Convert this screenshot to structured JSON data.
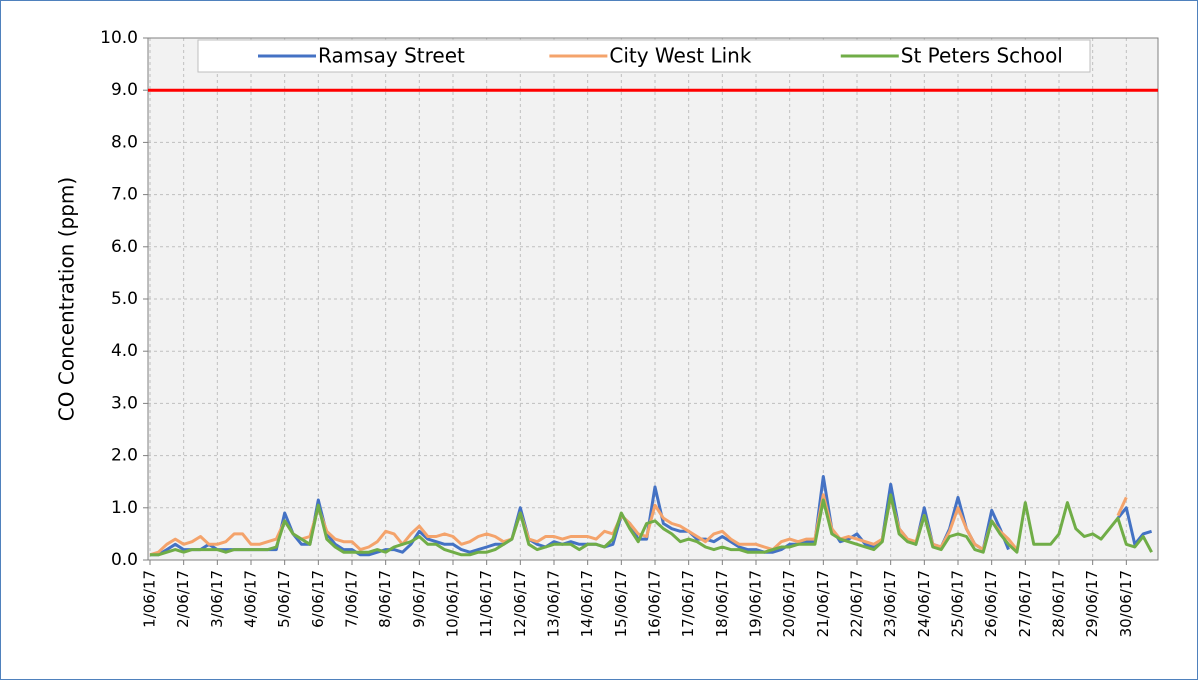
{
  "chart_data": {
    "type": "line",
    "y_label": "CO Concentration (ppm)",
    "categories": [
      "1/06/17",
      null,
      null,
      null,
      "2/06/17",
      null,
      null,
      null,
      "3/06/17",
      null,
      null,
      null,
      "4/06/17",
      null,
      null,
      null,
      "5/06/17",
      null,
      null,
      null,
      "6/06/17",
      null,
      null,
      null,
      "7/06/17",
      null,
      null,
      null,
      "8/06/17",
      null,
      null,
      null,
      "9/06/17",
      null,
      null,
      null,
      "10/06/17",
      null,
      null,
      null,
      "11/06/17",
      null,
      null,
      null,
      "12/06/17",
      null,
      null,
      null,
      "13/06/17",
      null,
      null,
      null,
      "14/06/17",
      null,
      null,
      null,
      "15/06/17",
      null,
      null,
      null,
      "16/06/17",
      null,
      null,
      null,
      "17/06/17",
      null,
      null,
      null,
      "18/06/17",
      null,
      null,
      null,
      "19/06/17",
      null,
      null,
      null,
      "20/06/17",
      null,
      null,
      null,
      "21/06/17",
      null,
      null,
      null,
      "22/06/17",
      null,
      null,
      null,
      "23/06/17",
      null,
      null,
      null,
      "24/06/17",
      null,
      null,
      null,
      "25/06/17",
      null,
      null,
      null,
      "26/06/17",
      null,
      null,
      null,
      "27/06/17",
      null,
      null,
      null,
      "28/06/17",
      null,
      null,
      null,
      "29/06/17",
      null,
      null,
      null,
      "30/06/17",
      null,
      null,
      null
    ],
    "series": [
      {
        "name": "Ramsay Street",
        "color": "#4472c4",
        "values": [
          0.1,
          0.1,
          0.2,
          0.3,
          0.2,
          0.2,
          0.2,
          0.3,
          0.2,
          0.2,
          0.2,
          0.2,
          0.2,
          0.2,
          0.2,
          0.2,
          0.9,
          0.5,
          0.3,
          0.3,
          1.15,
          0.5,
          0.3,
          0.2,
          0.2,
          0.1,
          0.1,
          0.15,
          0.2,
          0.2,
          0.15,
          0.3,
          0.55,
          0.4,
          0.35,
          0.3,
          0.3,
          0.2,
          0.15,
          0.2,
          0.25,
          0.3,
          0.3,
          0.4,
          1.0,
          0.4,
          0.3,
          0.25,
          0.35,
          0.3,
          0.35,
          0.3,
          0.3,
          0.3,
          0.25,
          0.3,
          0.85,
          0.7,
          0.4,
          0.4,
          1.4,
          0.7,
          0.6,
          0.55,
          0.55,
          0.4,
          0.4,
          0.35,
          0.45,
          0.35,
          0.25,
          0.2,
          0.2,
          0.15,
          0.15,
          0.2,
          0.3,
          0.3,
          0.35,
          0.35,
          1.6,
          0.6,
          0.35,
          0.4,
          0.5,
          0.3,
          0.25,
          0.4,
          1.45,
          0.6,
          0.4,
          0.3,
          1.0,
          0.3,
          0.25,
          0.6,
          1.2,
          0.6,
          0.3,
          0.2,
          0.95,
          0.6,
          0.2,
          null,
          1.35,
          null,
          null,
          null,
          null,
          null,
          null,
          null,
          null,
          null,
          null,
          0.8,
          1.0,
          0.3,
          0.5,
          0.55
        ]
      },
      {
        "name": "City West Link",
        "color": "#f4a36b",
        "values": [
          0.1,
          0.15,
          0.3,
          0.4,
          0.3,
          0.35,
          0.45,
          0.3,
          0.3,
          0.35,
          0.5,
          0.5,
          0.3,
          0.3,
          0.35,
          0.4,
          0.75,
          0.5,
          0.4,
          0.45,
          1.0,
          0.55,
          0.4,
          0.35,
          0.35,
          0.2,
          0.25,
          0.35,
          0.55,
          0.5,
          0.3,
          0.5,
          0.65,
          0.45,
          0.45,
          0.5,
          0.45,
          0.3,
          0.35,
          0.45,
          0.5,
          0.45,
          0.35,
          0.4,
          0.9,
          0.4,
          0.35,
          0.45,
          0.45,
          0.4,
          0.45,
          0.45,
          0.45,
          0.4,
          0.55,
          0.5,
          0.85,
          0.7,
          0.5,
          0.45,
          1.05,
          0.8,
          0.7,
          0.65,
          0.55,
          0.45,
          0.35,
          0.5,
          0.55,
          0.4,
          0.3,
          0.3,
          0.3,
          0.25,
          0.2,
          0.35,
          0.4,
          0.35,
          0.4,
          0.4,
          1.25,
          0.6,
          0.4,
          0.45,
          0.4,
          0.35,
          0.3,
          0.4,
          1.2,
          0.6,
          0.4,
          0.35,
          0.85,
          0.3,
          0.25,
          0.55,
          1.0,
          0.6,
          0.3,
          0.2,
          0.75,
          0.55,
          0.4,
          0.2,
          null,
          null,
          null,
          null,
          null,
          null,
          null,
          null,
          null,
          null,
          null,
          0.85,
          1.2,
          null,
          null,
          null
        ]
      },
      {
        "name": "St Peters School",
        "color": "#70ad47",
        "values": [
          0.1,
          0.1,
          0.15,
          0.2,
          0.15,
          0.2,
          0.2,
          0.2,
          0.2,
          0.15,
          0.2,
          0.2,
          0.2,
          0.2,
          0.2,
          0.25,
          0.75,
          0.5,
          0.4,
          0.3,
          1.05,
          0.4,
          0.25,
          0.15,
          0.15,
          0.15,
          0.15,
          0.2,
          0.15,
          0.25,
          0.3,
          0.35,
          0.45,
          0.3,
          0.3,
          0.2,
          0.15,
          0.1,
          0.1,
          0.15,
          0.15,
          0.2,
          0.3,
          0.4,
          0.9,
          0.3,
          0.2,
          0.25,
          0.3,
          0.3,
          0.3,
          0.2,
          0.3,
          0.3,
          0.25,
          0.4,
          0.9,
          0.6,
          0.35,
          0.7,
          0.75,
          0.6,
          0.5,
          0.35,
          0.4,
          0.35,
          0.25,
          0.2,
          0.25,
          0.2,
          0.2,
          0.15,
          0.15,
          0.15,
          0.2,
          0.25,
          0.25,
          0.3,
          0.3,
          0.3,
          1.15,
          0.5,
          0.4,
          0.35,
          0.3,
          0.25,
          0.2,
          0.35,
          1.25,
          0.5,
          0.35,
          0.3,
          0.85,
          0.25,
          0.2,
          0.45,
          0.5,
          0.45,
          0.2,
          0.15,
          0.75,
          0.5,
          0.3,
          0.15,
          1.1,
          0.3,
          0.3,
          0.3,
          0.5,
          1.1,
          0.6,
          0.45,
          0.5,
          0.4,
          0.6,
          0.8,
          0.3,
          0.25,
          0.45,
          0.15
        ]
      }
    ],
    "reference_line": {
      "value": 9,
      "color": "#ff0000"
    },
    "ylim": [
      0,
      10
    ],
    "yticks": [
      {
        "value": 0,
        "label": "0.0"
      },
      {
        "value": 1,
        "label": "1.0"
      },
      {
        "value": 2,
        "label": "2.0"
      },
      {
        "value": 3,
        "label": "3.0"
      },
      {
        "value": 4,
        "label": "4.0"
      },
      {
        "value": 5,
        "label": "5.0"
      },
      {
        "value": 6,
        "label": "6.0"
      },
      {
        "value": 7,
        "label": "7.0"
      },
      {
        "value": 8,
        "label": "8.0"
      },
      {
        "value": 9,
        "label": "9.0"
      },
      {
        "value": 10,
        "label": "10.0"
      }
    ],
    "grid": true,
    "legend": "top"
  }
}
